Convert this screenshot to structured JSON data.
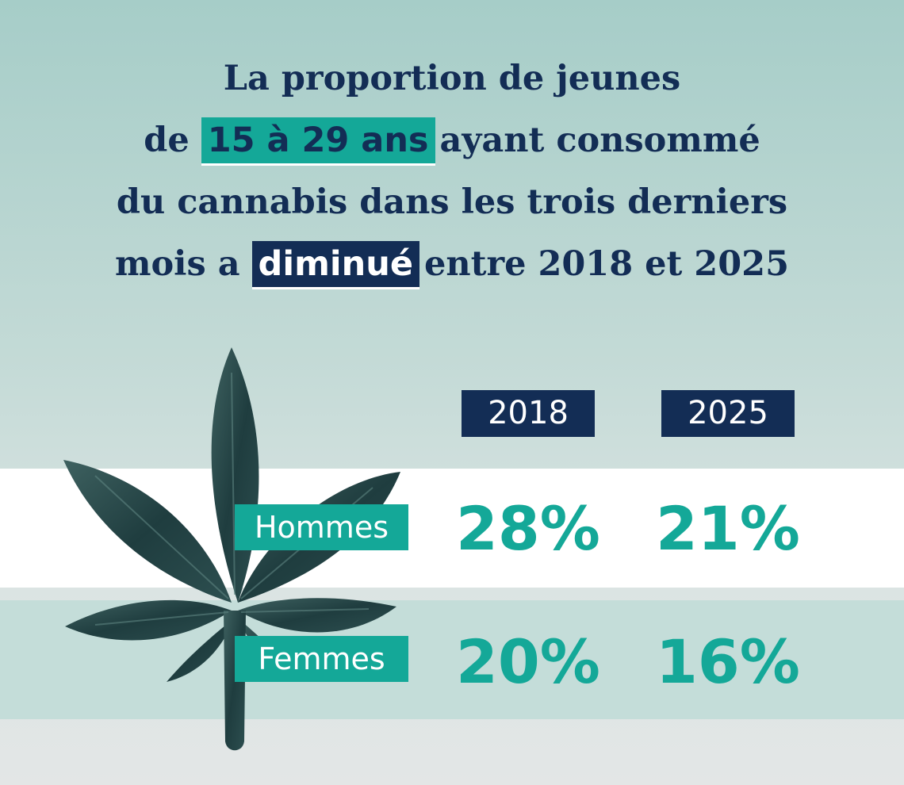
{
  "title": {
    "line1": "La proportion de jeunes",
    "line2_pre": "de",
    "line2_highlight": "15 à 29 ans",
    "line2_post": "ayant consommé",
    "line3": "du cannabis dans les trois derniers",
    "line4_pre": "mois a",
    "line4_highlight": "diminué",
    "line4_post": "entre 2018 et 2025"
  },
  "columns": [
    "2018",
    "2025"
  ],
  "rows": [
    {
      "label": "Hommes",
      "values": [
        "28%",
        "21%"
      ]
    },
    {
      "label": "Femmes",
      "values": [
        "20%",
        "16%"
      ]
    }
  ],
  "colors": {
    "navy": "#132d55",
    "teal": "#14a898",
    "leaf_dark": "#1f3d3f"
  },
  "icons": {
    "leaf": "cannabis-leaf-icon"
  }
}
